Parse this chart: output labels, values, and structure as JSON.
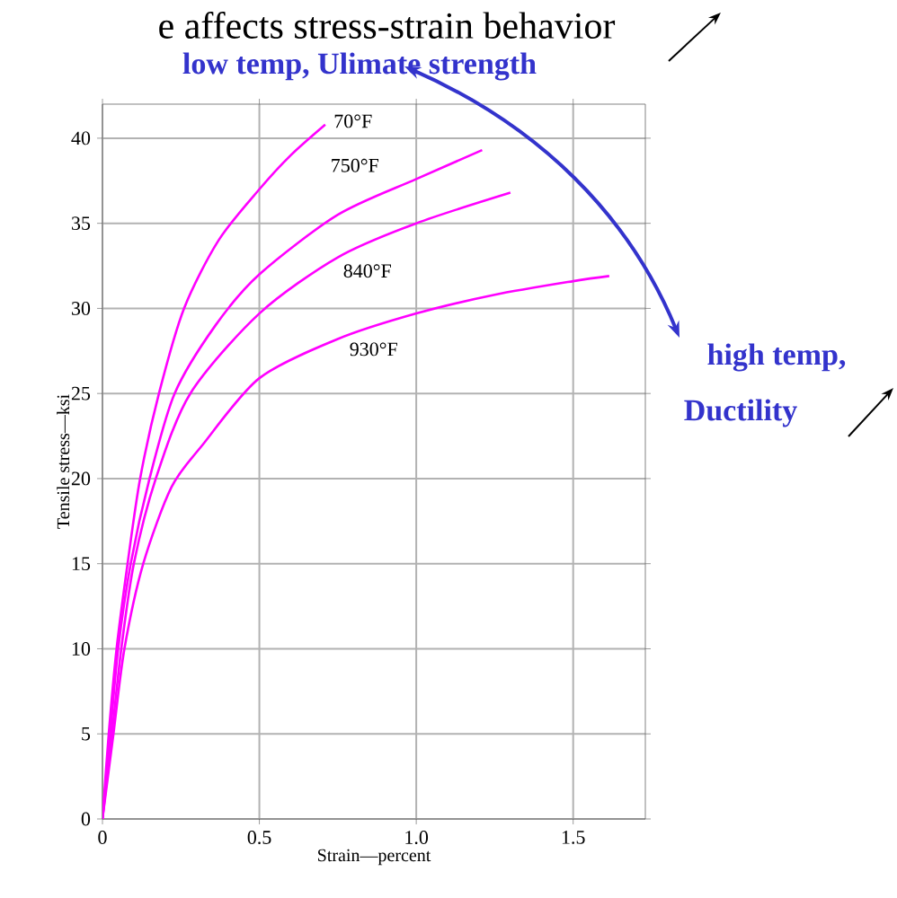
{
  "chart_data": {
    "type": "line",
    "title": "e affects stress-strain behavior",
    "xlabel": "Strain—percent",
    "ylabel": "Tensile stress—ksi",
    "annotations": [
      "low temp, Ulimate strength",
      "high temp,",
      "Ductility"
    ],
    "series": [
      {
        "name": "70°F",
        "color": "#ff00ff",
        "x": [
          0,
          0.02,
          0.045,
          0.08,
          0.12,
          0.18,
          0.26,
          0.37,
          0.5,
          0.6,
          0.71
        ],
        "values": [
          0,
          5,
          10,
          15,
          20,
          25,
          30,
          34,
          37,
          39,
          40.8
        ]
      },
      {
        "name": "750°F",
        "color": "#ff00ff",
        "x": [
          0,
          0.025,
          0.05,
          0.09,
          0.15,
          0.23,
          0.36,
          0.5,
          0.75,
          1.0,
          1.21
        ],
        "values": [
          0,
          5,
          10,
          15,
          20,
          25,
          29,
          32,
          35.5,
          37.6,
          39.3
        ]
      },
      {
        "name": "840°F",
        "color": "#ff00ff",
        "x": [
          0,
          0.03,
          0.06,
          0.1,
          0.17,
          0.28,
          0.5,
          0.75,
          1.0,
          1.3
        ],
        "values": [
          0,
          5,
          10,
          15,
          20,
          25,
          29.7,
          33,
          35,
          36.8
        ]
      },
      {
        "name": "930°F",
        "color": "#ff00ff",
        "x": [
          0,
          0.035,
          0.07,
          0.13,
          0.22,
          0.32,
          0.5,
          0.75,
          1.0,
          1.25,
          1.5,
          1.615
        ],
        "values": [
          0,
          5,
          10,
          15,
          19.5,
          22,
          25.9,
          28.2,
          29.7,
          30.8,
          31.6,
          31.9
        ]
      }
    ],
    "xlim": [
      0,
      1.73
    ],
    "ylim": [
      0,
      42
    ],
    "xticks": [
      0,
      0.5,
      {
        "value": 1,
        "label": "1.0"
      },
      1.5
    ],
    "yticks": [
      0,
      5,
      10,
      15,
      20,
      25,
      30,
      35,
      40
    ],
    "grid": true,
    "marker": "none",
    "line_style": "solid"
  }
}
